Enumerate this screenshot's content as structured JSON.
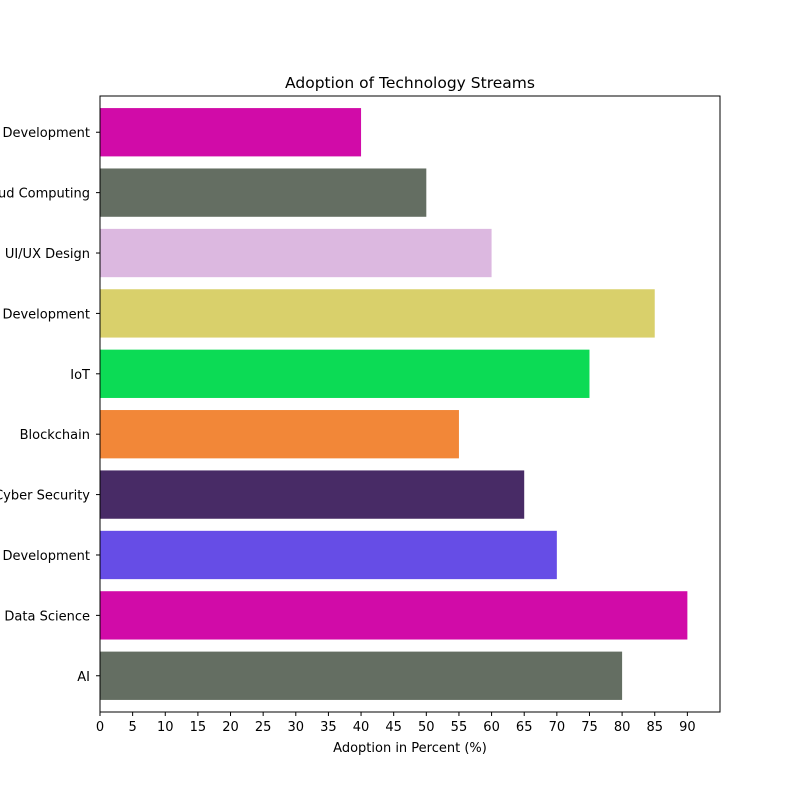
{
  "chart_data": {
    "type": "bar",
    "orientation": "horizontal",
    "title": "Adoption of Technology Streams",
    "xlabel": "Adoption in Percent (%)",
    "ylabel": "",
    "xlim": [
      0,
      95
    ],
    "xticks": [
      0,
      5,
      10,
      15,
      20,
      25,
      30,
      35,
      40,
      45,
      50,
      55,
      60,
      65,
      70,
      75,
      80,
      85,
      90
    ],
    "grid": false,
    "categories": [
      "AI",
      "Data Science",
      "Web Development",
      "Cyber Security",
      "Blockchain",
      "IoT",
      "Mobile App Development",
      "UI/UX Design",
      "Cloud Computing",
      "Game Development"
    ],
    "values": [
      80,
      90,
      70,
      65,
      55,
      75,
      85,
      60,
      50,
      40
    ],
    "colors": [
      "#646e62",
      "#d10ba8",
      "#664de6",
      "#482b66",
      "#f28738",
      "#0cdb55",
      "#d9d06b",
      "#dcb8e0",
      "#646e62",
      "#d10ba8"
    ]
  }
}
